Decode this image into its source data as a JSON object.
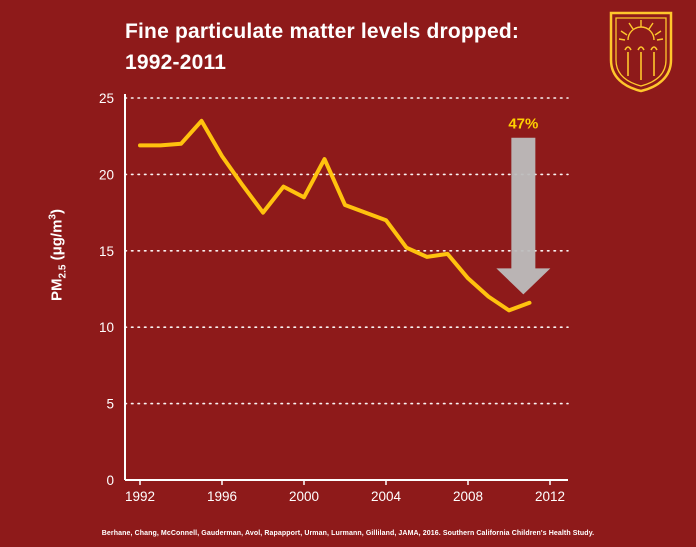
{
  "page": {
    "title_line1": "Fine particulate matter levels dropped:",
    "title_line2": "1992-2011",
    "citation": "Berhane, Chang, McConnell, Gauderman, Avol, Rapapport, Urman, Lurmann, Gilliland, JAMA, 2016. Southern California Children's Health Study."
  },
  "colors": {
    "background": "#8e1a1a",
    "line": "#FFC20E",
    "axis": "#FFFFFF",
    "grid": "#FFFFFF",
    "arrow": "#BDBDBD",
    "annotation": "#FFD100",
    "logo": "#FFC72C"
  },
  "chart_data": {
    "type": "line",
    "title": "Fine particulate matter levels dropped: 1992-2011",
    "xlabel": "",
    "ylabel": "PM2.5 (μg/m³)",
    "ylabel_parts": {
      "prefix": "PM",
      "sub": "2.5",
      "mid": " (μg/m",
      "sup": "3",
      "suffix": ")"
    },
    "x": [
      1992,
      1993,
      1994,
      1995,
      1996,
      1997,
      1998,
      1999,
      2000,
      2001,
      2002,
      2003,
      2004,
      2005,
      2006,
      2007,
      2008,
      2009,
      2010,
      2011
    ],
    "values": [
      21.9,
      21.9,
      22.0,
      23.5,
      21.2,
      19.3,
      17.5,
      19.2,
      18.5,
      21.0,
      18.0,
      17.5,
      17.0,
      15.2,
      14.6,
      14.8,
      13.2,
      12.0,
      11.1,
      11.6
    ],
    "series_name": "PM2.5 (μg/m³)",
    "xlim": [
      1992,
      2012
    ],
    "ylim": [
      0,
      25
    ],
    "x_ticks": [
      1992,
      1996,
      2000,
      2004,
      2008,
      2012
    ],
    "y_ticks": [
      0,
      5,
      10,
      15,
      20,
      25
    ],
    "grid": "dotted-horizontal",
    "legend": "none",
    "annotation": {
      "label": "47%",
      "x": 2010.7,
      "from_y": 22.4,
      "to_y": 12.15
    }
  }
}
